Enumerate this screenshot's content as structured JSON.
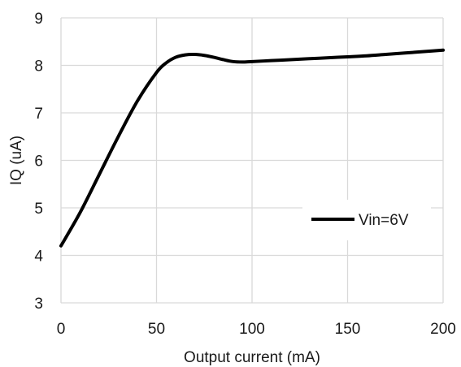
{
  "chart_data": {
    "type": "line",
    "xlabel": "Output current (mA)",
    "ylabel": "IQ (uA)",
    "xlim": [
      0,
      200
    ],
    "ylim": [
      3,
      9
    ],
    "xticks": [
      "0",
      "50",
      "100",
      "150",
      "200"
    ],
    "yticks": [
      "3",
      "4",
      "5",
      "6",
      "7",
      "8",
      "9"
    ],
    "grid": true,
    "legend_position": "right",
    "series": [
      {
        "name": "Vin=6V",
        "color": "#000000",
        "x": [
          0,
          10,
          20,
          30,
          40,
          50,
          55,
          60,
          65,
          70,
          75,
          80,
          85,
          90,
          95,
          100,
          110,
          120,
          130,
          140,
          150,
          160,
          170,
          180,
          190,
          200
        ],
        "y": [
          4.2,
          4.9,
          5.7,
          6.5,
          7.25,
          7.85,
          8.05,
          8.17,
          8.22,
          8.23,
          8.21,
          8.17,
          8.12,
          8.08,
          8.07,
          8.08,
          8.1,
          8.12,
          8.14,
          8.16,
          8.18,
          8.2,
          8.23,
          8.26,
          8.29,
          8.32
        ]
      }
    ]
  }
}
